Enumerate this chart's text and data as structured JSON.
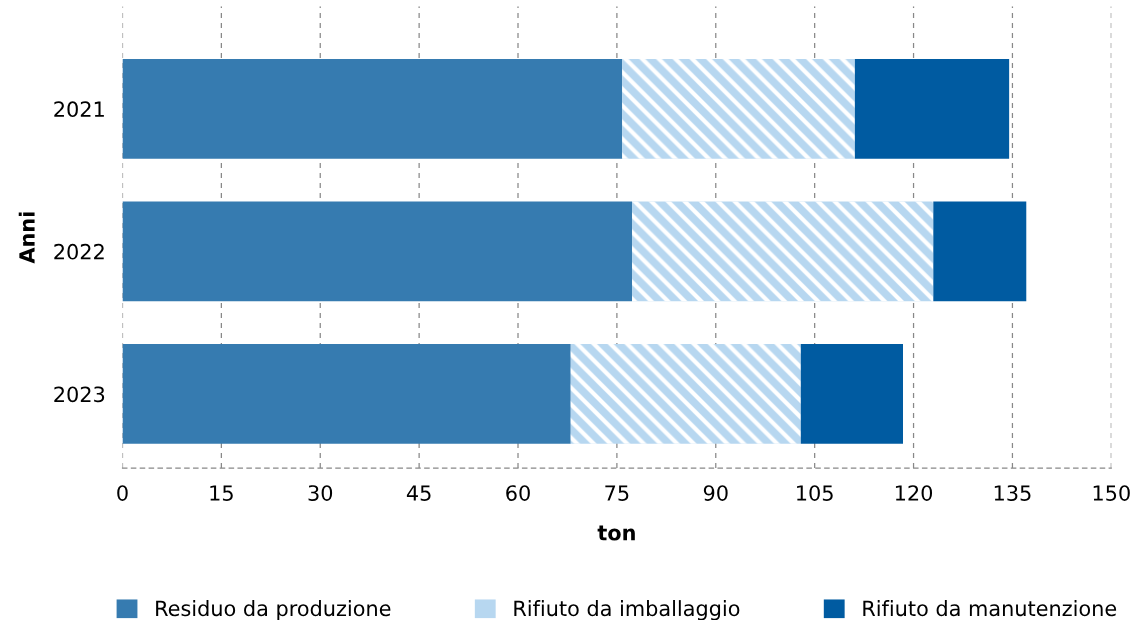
{
  "chart_data": {
    "type": "bar",
    "orientation": "horizontal",
    "stacked": true,
    "xlabel": "ton",
    "ylabel": "Anni",
    "categories": [
      "2021",
      "2022",
      "2023"
    ],
    "series": [
      {
        "name": "Residuo da produzione",
        "color": "#367bb0",
        "values": [
          75.8,
          77.3,
          68.0
        ]
      },
      {
        "name": "Rifiuto da imballaggio",
        "color": "#b7d7f0",
        "values": [
          35.3,
          45.7,
          34.9
        ]
      },
      {
        "name": "Rifiuto da manutenzione",
        "color": "#005ba1",
        "values": [
          23.4,
          14.1,
          15.5
        ]
      }
    ],
    "xlim": [
      0,
      150
    ],
    "xticks": [
      0,
      15,
      30,
      45,
      60,
      75,
      90,
      105,
      120,
      135,
      150
    ],
    "grid": "x",
    "legend": "bottom"
  }
}
